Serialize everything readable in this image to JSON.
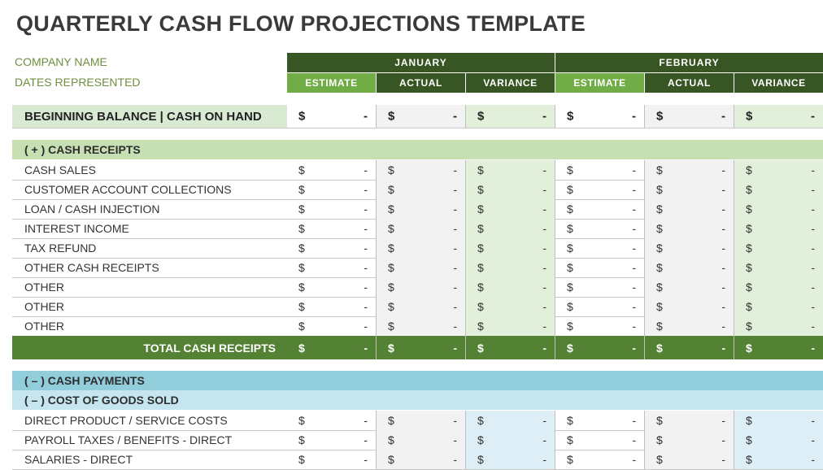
{
  "title": "QUARTERLY CASH FLOW PROJECTIONS TEMPLATE",
  "meta": {
    "company": "COMPANY NAME",
    "dates": "DATES REPRESENTED"
  },
  "months": [
    "JANUARY",
    "FEBRUARY"
  ],
  "columns": [
    "ESTIMATE",
    "ACTUAL",
    "VARIANCE",
    "ESTIMATE",
    "ACTUAL",
    "VARIANCE"
  ],
  "currency_symbol": "$",
  "empty_value": "-",
  "beginning_balance_label": "BEGINNING BALANCE  |  CASH ON HAND",
  "receipts": {
    "header": "( + )  CASH RECEIPTS",
    "items": [
      "CASH SALES",
      "CUSTOMER ACCOUNT COLLECTIONS",
      "LOAN / CASH INJECTION",
      "INTEREST INCOME",
      "TAX REFUND",
      "OTHER CASH RECEIPTS",
      "OTHER",
      "OTHER",
      "OTHER"
    ],
    "total_label": "TOTAL CASH RECEIPTS"
  },
  "payments": {
    "header": "( – )  CASH PAYMENTS",
    "cogs_header": "( – )  COST OF GOODS SOLD",
    "items": [
      "DIRECT PRODUCT / SERVICE COSTS",
      "PAYROLL TAXES / BENEFITS - DIRECT",
      "SALARIES - DIRECT"
    ]
  },
  "colors": {
    "dark_green": "#375623",
    "header_green": "#70ad47",
    "total_green": "#548235",
    "section_green": "#c6e0b4",
    "actual_fill": "#f2f2f2",
    "variance_green": "#e2efda",
    "beginning_label": "#d9ead3",
    "payments_blue": "#92cddc",
    "cogs_blue": "#c5e6ef",
    "variance_blue": "#ddeef6"
  }
}
